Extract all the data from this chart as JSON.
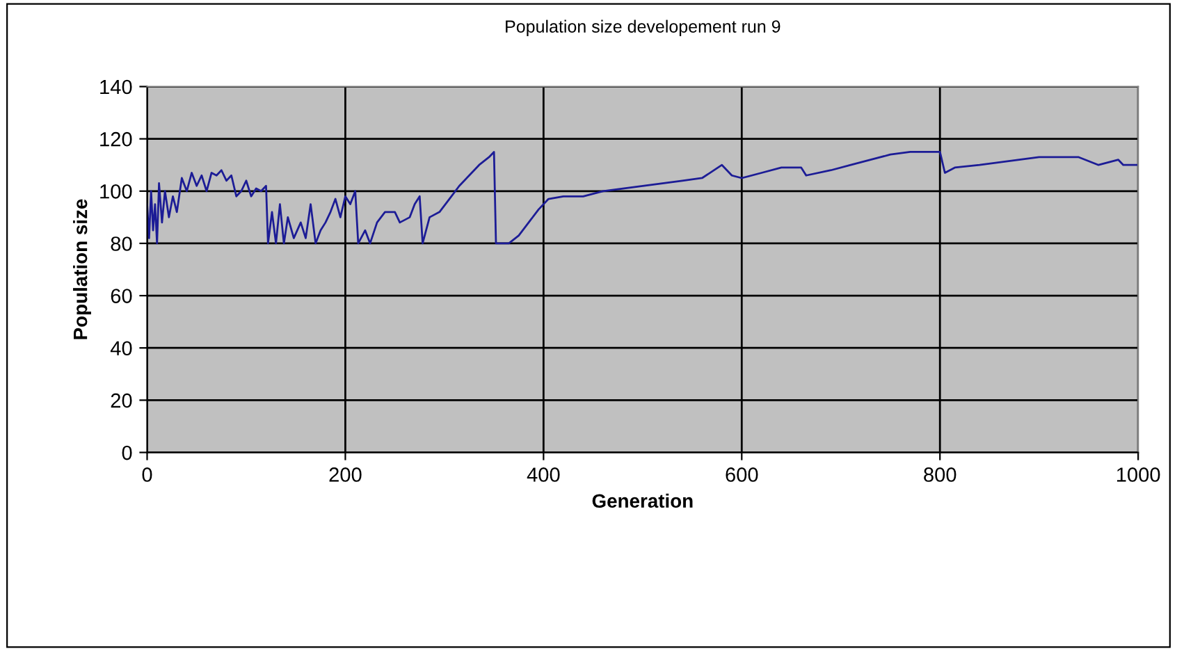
{
  "chart_data": {
    "type": "line",
    "title": "Population size developement run 9",
    "xlabel": "Generation",
    "ylabel": "Population size",
    "xlim": [
      0,
      1000
    ],
    "xticks": [
      0,
      200,
      400,
      600,
      800,
      1000
    ],
    "ylim": [
      0,
      140
    ],
    "yticks": [
      0,
      20,
      40,
      60,
      80,
      100,
      120,
      140
    ],
    "grid": true,
    "legend": false,
    "marker": "none",
    "line_style": "solid",
    "series": [
      {
        "color": "#1c1c96",
        "x": [
          0,
          2,
          4,
          6,
          8,
          10,
          12,
          15,
          18,
          22,
          26,
          30,
          35,
          40,
          45,
          50,
          55,
          60,
          65,
          70,
          75,
          80,
          85,
          90,
          95,
          100,
          105,
          110,
          115,
          120,
          122,
          126,
          130,
          134,
          138,
          142,
          148,
          155,
          160,
          165,
          170,
          175,
          180,
          185,
          190,
          195,
          200,
          205,
          210,
          213,
          220,
          225,
          232,
          240,
          250,
          255,
          265,
          270,
          275,
          278,
          285,
          295,
          305,
          315,
          325,
          335,
          345,
          350,
          352,
          365,
          375,
          385,
          395,
          405,
          420,
          440,
          460,
          480,
          500,
          520,
          540,
          560,
          580,
          590,
          600,
          620,
          640,
          660,
          665,
          690,
          710,
          730,
          750,
          770,
          790,
          800,
          805,
          815,
          840,
          860,
          880,
          900,
          920,
          940,
          960,
          980,
          985,
          1000
        ],
        "values": [
          95,
          82,
          100,
          85,
          95,
          80,
          103,
          88,
          100,
          90,
          98,
          92,
          105,
          100,
          107,
          102,
          106,
          100,
          107,
          106,
          108,
          104,
          106,
          98,
          100,
          104,
          98,
          101,
          100,
          102,
          80,
          92,
          80,
          95,
          80,
          90,
          82,
          88,
          82,
          95,
          80,
          85,
          88,
          92,
          97,
          90,
          98,
          95,
          100,
          80,
          85,
          80,
          88,
          92,
          92,
          88,
          90,
          95,
          98,
          80,
          90,
          92,
          97,
          102,
          106,
          110,
          113,
          115,
          80,
          80,
          83,
          88,
          93,
          97,
          98,
          98,
          100,
          101,
          102,
          103,
          104,
          105,
          110,
          106,
          105,
          107,
          109,
          109,
          106,
          108,
          110,
          112,
          114,
          115,
          115,
          115,
          107,
          109,
          110,
          111,
          112,
          113,
          113,
          113,
          110,
          112,
          110,
          110
        ]
      }
    ]
  }
}
